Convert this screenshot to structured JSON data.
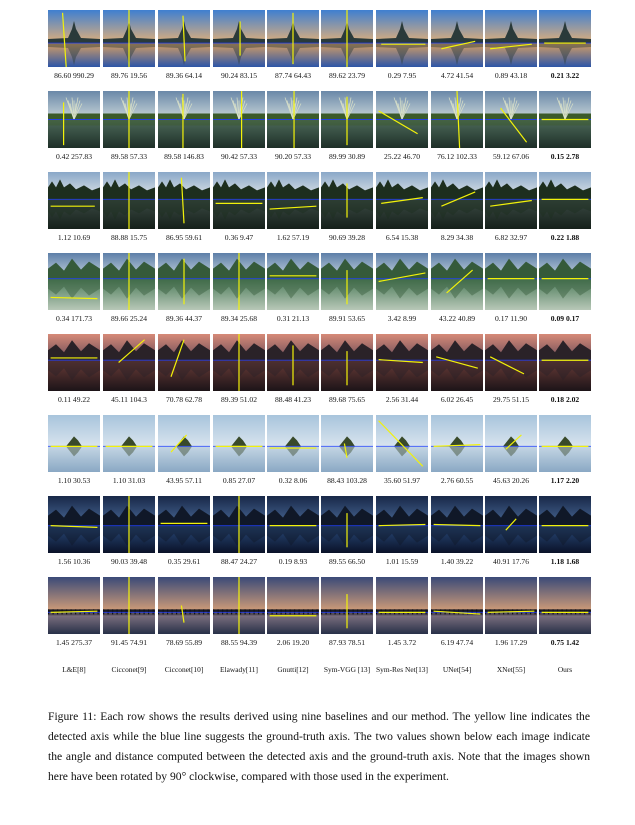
{
  "methods": [
    "L&E[8]",
    "Cicconet[9]",
    "Cicconet[10]",
    "Elawady[11]",
    "Gnutti[12]",
    "Sym-VGG [13]",
    "Sym-Res Net[13]",
    "UNet[54]",
    "XNet[55]",
    "Ours"
  ],
  "rows": [
    {
      "scene": "palace",
      "values": [
        "86.60 990.29",
        "89.76 19.56",
        "89.36 64.14",
        "90.24 83.15",
        "87.74 64.43",
        "89.62 23.79",
        "0.29 7.95",
        "4.72 41.54",
        "0.89 43.18",
        "0.21 3.22"
      ]
    },
    {
      "scene": "reeds",
      "values": [
        "0.42 257.83",
        "89.58 57.33",
        "89.58 146.83",
        "90.42 57.33",
        "90.20 57.33",
        "89.99 30.89",
        "25.22 46.70",
        "76.12 102.33",
        "59.12 67.06",
        "0.15 2.78"
      ]
    },
    {
      "scene": "forest",
      "values": [
        "1.12 10.69",
        "88.88 15.75",
        "86.95 59.61",
        "0.36 9.47",
        "1.62 57.19",
        "90.69 39.28",
        "6.54 15.38",
        "8.29 34.38",
        "6.82 32.97",
        "0.22 1.88"
      ]
    },
    {
      "scene": "mountain-green",
      "values": [
        "0.34 171.73",
        "89.66 25.24",
        "89.36 44.37",
        "89.34 25.68",
        "0.31 21.13",
        "89.91 53.65",
        "3.42 8.99",
        "43.22 40.89",
        "0.17 11.90",
        "0.09 0.17"
      ]
    },
    {
      "scene": "sunset",
      "values": [
        "0.11 49.22",
        "45.11 104.3",
        "70.78 62.78",
        "89.39 51.02",
        "88.48 41.23",
        "89.68 75.65",
        "2.56 31.44",
        "6.02 26.45",
        "29.75 51.15",
        "0.18 2.02"
      ]
    },
    {
      "scene": "island",
      "values": [
        "1.10 30.53",
        "1.10 31.03",
        "43.95 57.11",
        "0.85 27.07",
        "0.32 8.06",
        "88.43 103.28",
        "35.60 51.97",
        "2.76 60.55",
        "45.63 20.26",
        "1.17 2.20"
      ]
    },
    {
      "scene": "night-mountain",
      "values": [
        "1.56 10.36",
        "90.03 39.48",
        "0.35 29.61",
        "88.47 24.27",
        "0.19 8.93",
        "89.55 66.50",
        "1.01 15.59",
        "1.40 39.22",
        "40.91 17.76",
        "1.18 1.68"
      ]
    },
    {
      "scene": "dusk-pier",
      "values": [
        "1.45 275.37",
        "91.45 74.91",
        "78.69 55.89",
        "88.55 94.39",
        "2.06 19.20",
        "87.93 78.51",
        "1.45 3.72",
        "6.19 47.74",
        "1.96 17.29",
        "0.75 1.42"
      ]
    }
  ],
  "caption": "Figure 11: Each row shows the results derived using nine baselines and our method. The yellow line indicates the detected axis while the blue line suggests the ground-truth axis. The two values shown below each image indicate the angle and distance computed between the detected axis and the ground-truth axis. Note that the images shown here have been rotated by 90° clockwise, compared with those used in the experiment.",
  "colors": {
    "detected_axis": "#f2f20a",
    "ground_truth_axis": "#1e3cff"
  }
}
